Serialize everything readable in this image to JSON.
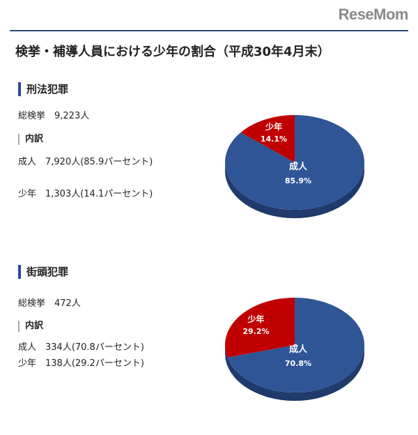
{
  "logo": "ReseMom",
  "title": "検挙・補導人員における少年の割合（平成30年4月末）",
  "sections": [
    {
      "heading": "刑法犯罪",
      "total": "総検挙　9,223人",
      "breakdown_label": "内訳",
      "lines": [
        "成人　7,920人(85.9パーセント)",
        "少年　1,303人(14.1パーセント)"
      ]
    },
    {
      "heading": "街頭犯罪",
      "total": "総検挙　472人",
      "breakdown_label": "内訳",
      "lines": [
        "成人　334人(70.8パーセント)",
        "少年　138人(29.2パーセント)"
      ]
    }
  ],
  "colors": {
    "adult": "#2f5597",
    "youth": "#c00000"
  },
  "chart_data": [
    {
      "type": "pie",
      "categories": [
        "成人",
        "少年"
      ],
      "values": [
        85.9,
        14.1
      ],
      "labels": [
        "85.9%",
        "14.1%"
      ]
    },
    {
      "type": "pie",
      "categories": [
        "成人",
        "少年"
      ],
      "values": [
        70.8,
        29.2
      ],
      "labels": [
        "70.8%",
        "29.2%"
      ]
    }
  ]
}
